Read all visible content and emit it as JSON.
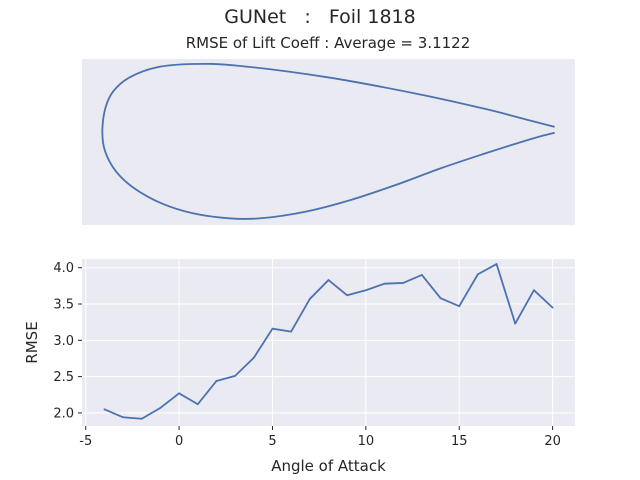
{
  "figure": {
    "suptitle": "GUNet   :   Foil 1818"
  },
  "chart_data": [
    {
      "type": "line",
      "panel": "airfoil-shape",
      "title": "RMSE of Lift Coeff : Average = 3.1122",
      "axes_visible": false,
      "grid": false,
      "background": "#eaeaf2",
      "line_color": "#4c72b0",
      "x": [
        1.0,
        0.95,
        0.85,
        0.7,
        0.5,
        0.3,
        0.2,
        0.12,
        0.06,
        0.025,
        0.007,
        0.0,
        0.006,
        0.03,
        0.07,
        0.13,
        0.2,
        0.28,
        0.35,
        0.45,
        0.55,
        0.65,
        0.75,
        0.85,
        0.92,
        0.97,
        1.0
      ],
      "y": [
        0.145,
        0.18,
        0.25,
        0.34,
        0.44,
        0.51,
        0.52,
        0.5,
        0.44,
        0.36,
        0.26,
        0.12,
        0.0,
        -0.12,
        -0.22,
        -0.31,
        -0.37,
        -0.4,
        -0.4,
        -0.36,
        -0.29,
        -0.2,
        -0.1,
        -0.01,
        0.05,
        0.09,
        0.11
      ]
    },
    {
      "type": "line",
      "panel": "rmse-vs-aoa",
      "xlabel": "Angle of Attack",
      "ylabel": "RMSE",
      "xlim": [
        -5.2,
        21.2
      ],
      "ylim": [
        1.82,
        4.12
      ],
      "xticks": [
        -5,
        0,
        5,
        10,
        15,
        20
      ],
      "yticks": [
        2.0,
        2.5,
        3.0,
        3.5,
        4.0
      ],
      "grid": true,
      "background": "#eaeaf2",
      "grid_color": "#ffffff",
      "line_color": "#4c72b0",
      "x": [
        -4,
        -3,
        -2,
        -1,
        0,
        1,
        2,
        3,
        4,
        5,
        6,
        7,
        8,
        9,
        10,
        11,
        12,
        13,
        14,
        15,
        16,
        17,
        18,
        19,
        20
      ],
      "y": [
        2.05,
        1.94,
        1.92,
        2.07,
        2.27,
        2.12,
        2.44,
        2.51,
        2.76,
        3.16,
        3.12,
        3.57,
        3.83,
        3.62,
        3.69,
        3.78,
        3.79,
        3.9,
        3.58,
        3.47,
        3.91,
        4.05,
        3.23,
        3.69,
        3.45
      ]
    }
  ]
}
